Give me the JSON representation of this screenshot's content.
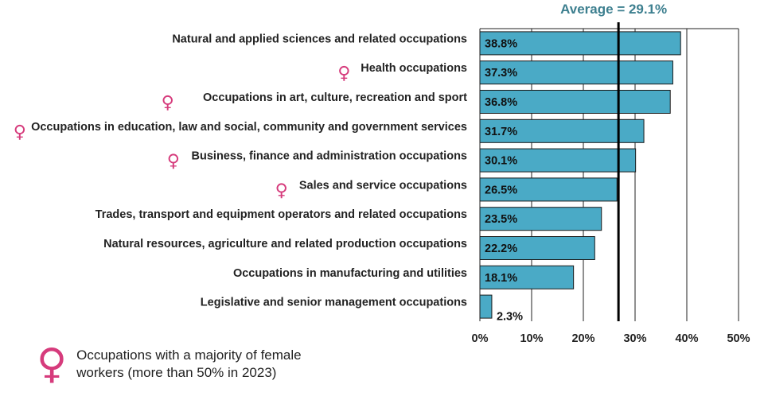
{
  "chart_data": {
    "type": "bar",
    "orientation": "horizontal",
    "categories": [
      "Natural and applied sciences and related occupations",
      "Health occupations",
      "Occupations in art, culture, recreation and sport",
      "Occupations in education, law and social, community and government services",
      "Business, finance and administration occupations",
      "Sales and service occupations",
      "Trades, transport and equipment operators and related occupations",
      "Natural resources, agriculture and related production occupations",
      "Occupations in manufacturing and utilities",
      "Legislative and senior management occupations"
    ],
    "values": [
      38.8,
      37.3,
      36.8,
      31.7,
      30.1,
      26.5,
      23.5,
      22.2,
      18.1,
      2.3
    ],
    "value_labels": [
      "38.8%",
      "37.3%",
      "36.8%",
      "31.7%",
      "30.1%",
      "26.5%",
      "23.5%",
      "22.2%",
      "18.1%",
      "2.3%"
    ],
    "female_majority": [
      false,
      true,
      true,
      true,
      true,
      true,
      false,
      false,
      false,
      false
    ],
    "xlim": [
      0,
      50
    ],
    "xticks": [
      0,
      10,
      20,
      30,
      40,
      50
    ],
    "xtick_labels": [
      "0%",
      "10%",
      "20%",
      "30%",
      "40%",
      "50%"
    ],
    "grid": true,
    "average": 29.1,
    "average_label": "Average = 29.1%"
  },
  "colors": {
    "bar": "#4aaac6",
    "bar_stroke": "#1a1a1a",
    "average_line": "#000000",
    "average_text": "#3d7f8f",
    "female_icon": "#d63b7c",
    "grid": "#222222"
  },
  "legend": {
    "icon": "♀",
    "icon_name": "female-symbol-icon",
    "text": "Occupations with a majority of female\nworkers (more than 50% in 2023)"
  }
}
